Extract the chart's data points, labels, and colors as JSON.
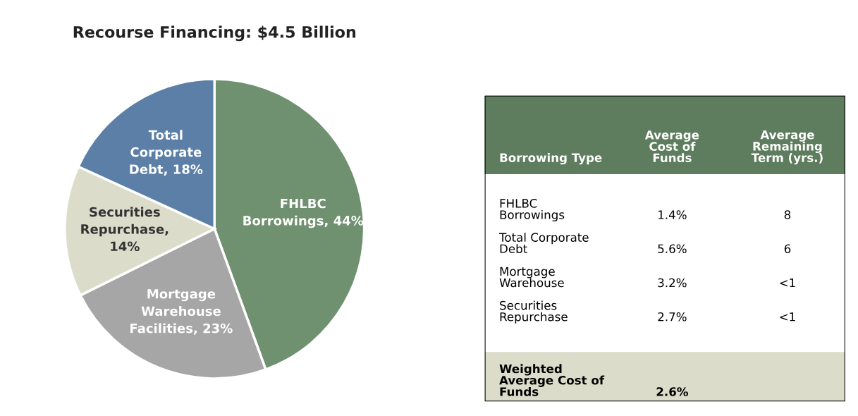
{
  "chart_data": [
    {
      "type": "pie",
      "title": "Recourse Financing: $4.5 Billion",
      "categories": [
        "FHLBC\nBorrowings, 44%",
        "Mortgage\nWarehouse\nFacilities, 23%",
        "Securities\nRepurchase,\n14%",
        "Total\nCorporate\nDebt, 18%"
      ],
      "values": [
        44,
        23,
        14,
        18
      ],
      "colors": [
        "#6f9170",
        "#a6a6a6",
        "#dcdccb",
        "#5b7fa6"
      ]
    },
    {
      "type": "other",
      "categories": [
        "Borrowing Type",
        "Average\nCost of\nFunds",
        "Average\nRemaining\nTerm (yrs.)"
      ],
      "cell_labels": [
        [
          "FHLBC\nBorrowings",
          "1.4%",
          "8"
        ],
        [
          "Total Corporate\nDebt",
          "5.6%",
          "6"
        ],
        [
          "Mortgage\nWarehouse",
          "3.2%",
          "<1"
        ],
        [
          "Securities\nRepurchase",
          "2.7%",
          "<1"
        ],
        [
          "Weighted\nAverage Cost of\nFunds",
          "2.6%",
          null
        ]
      ]
    }
  ]
}
